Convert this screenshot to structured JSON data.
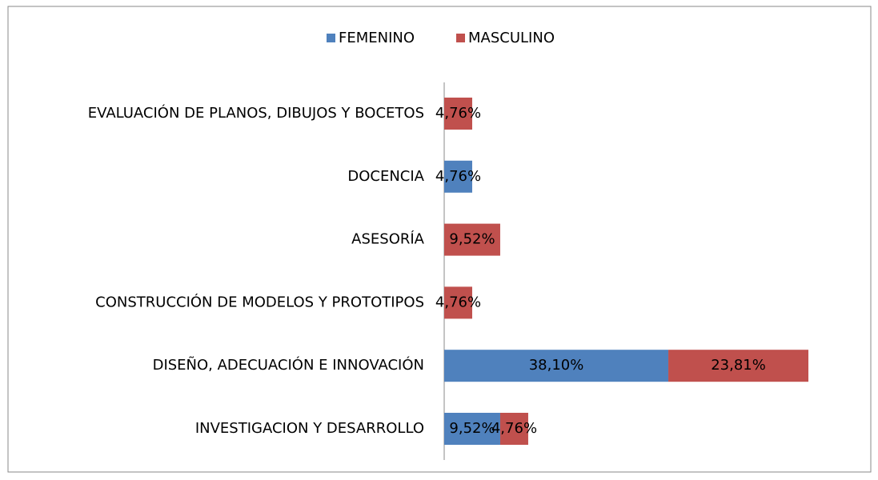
{
  "chart_data": {
    "type": "stacked-barh",
    "categories": [
      "EVALUACIÓN DE PLANOS, DIBUJOS Y BOCETOS",
      "DOCENCIA",
      "ASESORÍA",
      "CONSTRUCCIÓN DE MODELOS Y PROTOTIPOS",
      "DISEÑO, ADECUACIÓN E INNOVACIÓN",
      "INVESTIGACION Y DESARROLLO"
    ],
    "series": [
      {
        "name": "FEMENINO",
        "color": "#4f81bd",
        "values": [
          null,
          4.76,
          null,
          null,
          38.1,
          9.52
        ],
        "value_labels": [
          null,
          "4,76%",
          null,
          null,
          "38,10%",
          "9,52%"
        ]
      },
      {
        "name": "MASCULINO",
        "color": "#c0504d",
        "values": [
          4.76,
          null,
          9.52,
          4.76,
          23.81,
          4.76
        ],
        "value_labels": [
          "4,76%",
          null,
          "9,52%",
          "4,76%",
          "23,81%",
          "4,76%"
        ]
      }
    ],
    "legend": "top"
  }
}
